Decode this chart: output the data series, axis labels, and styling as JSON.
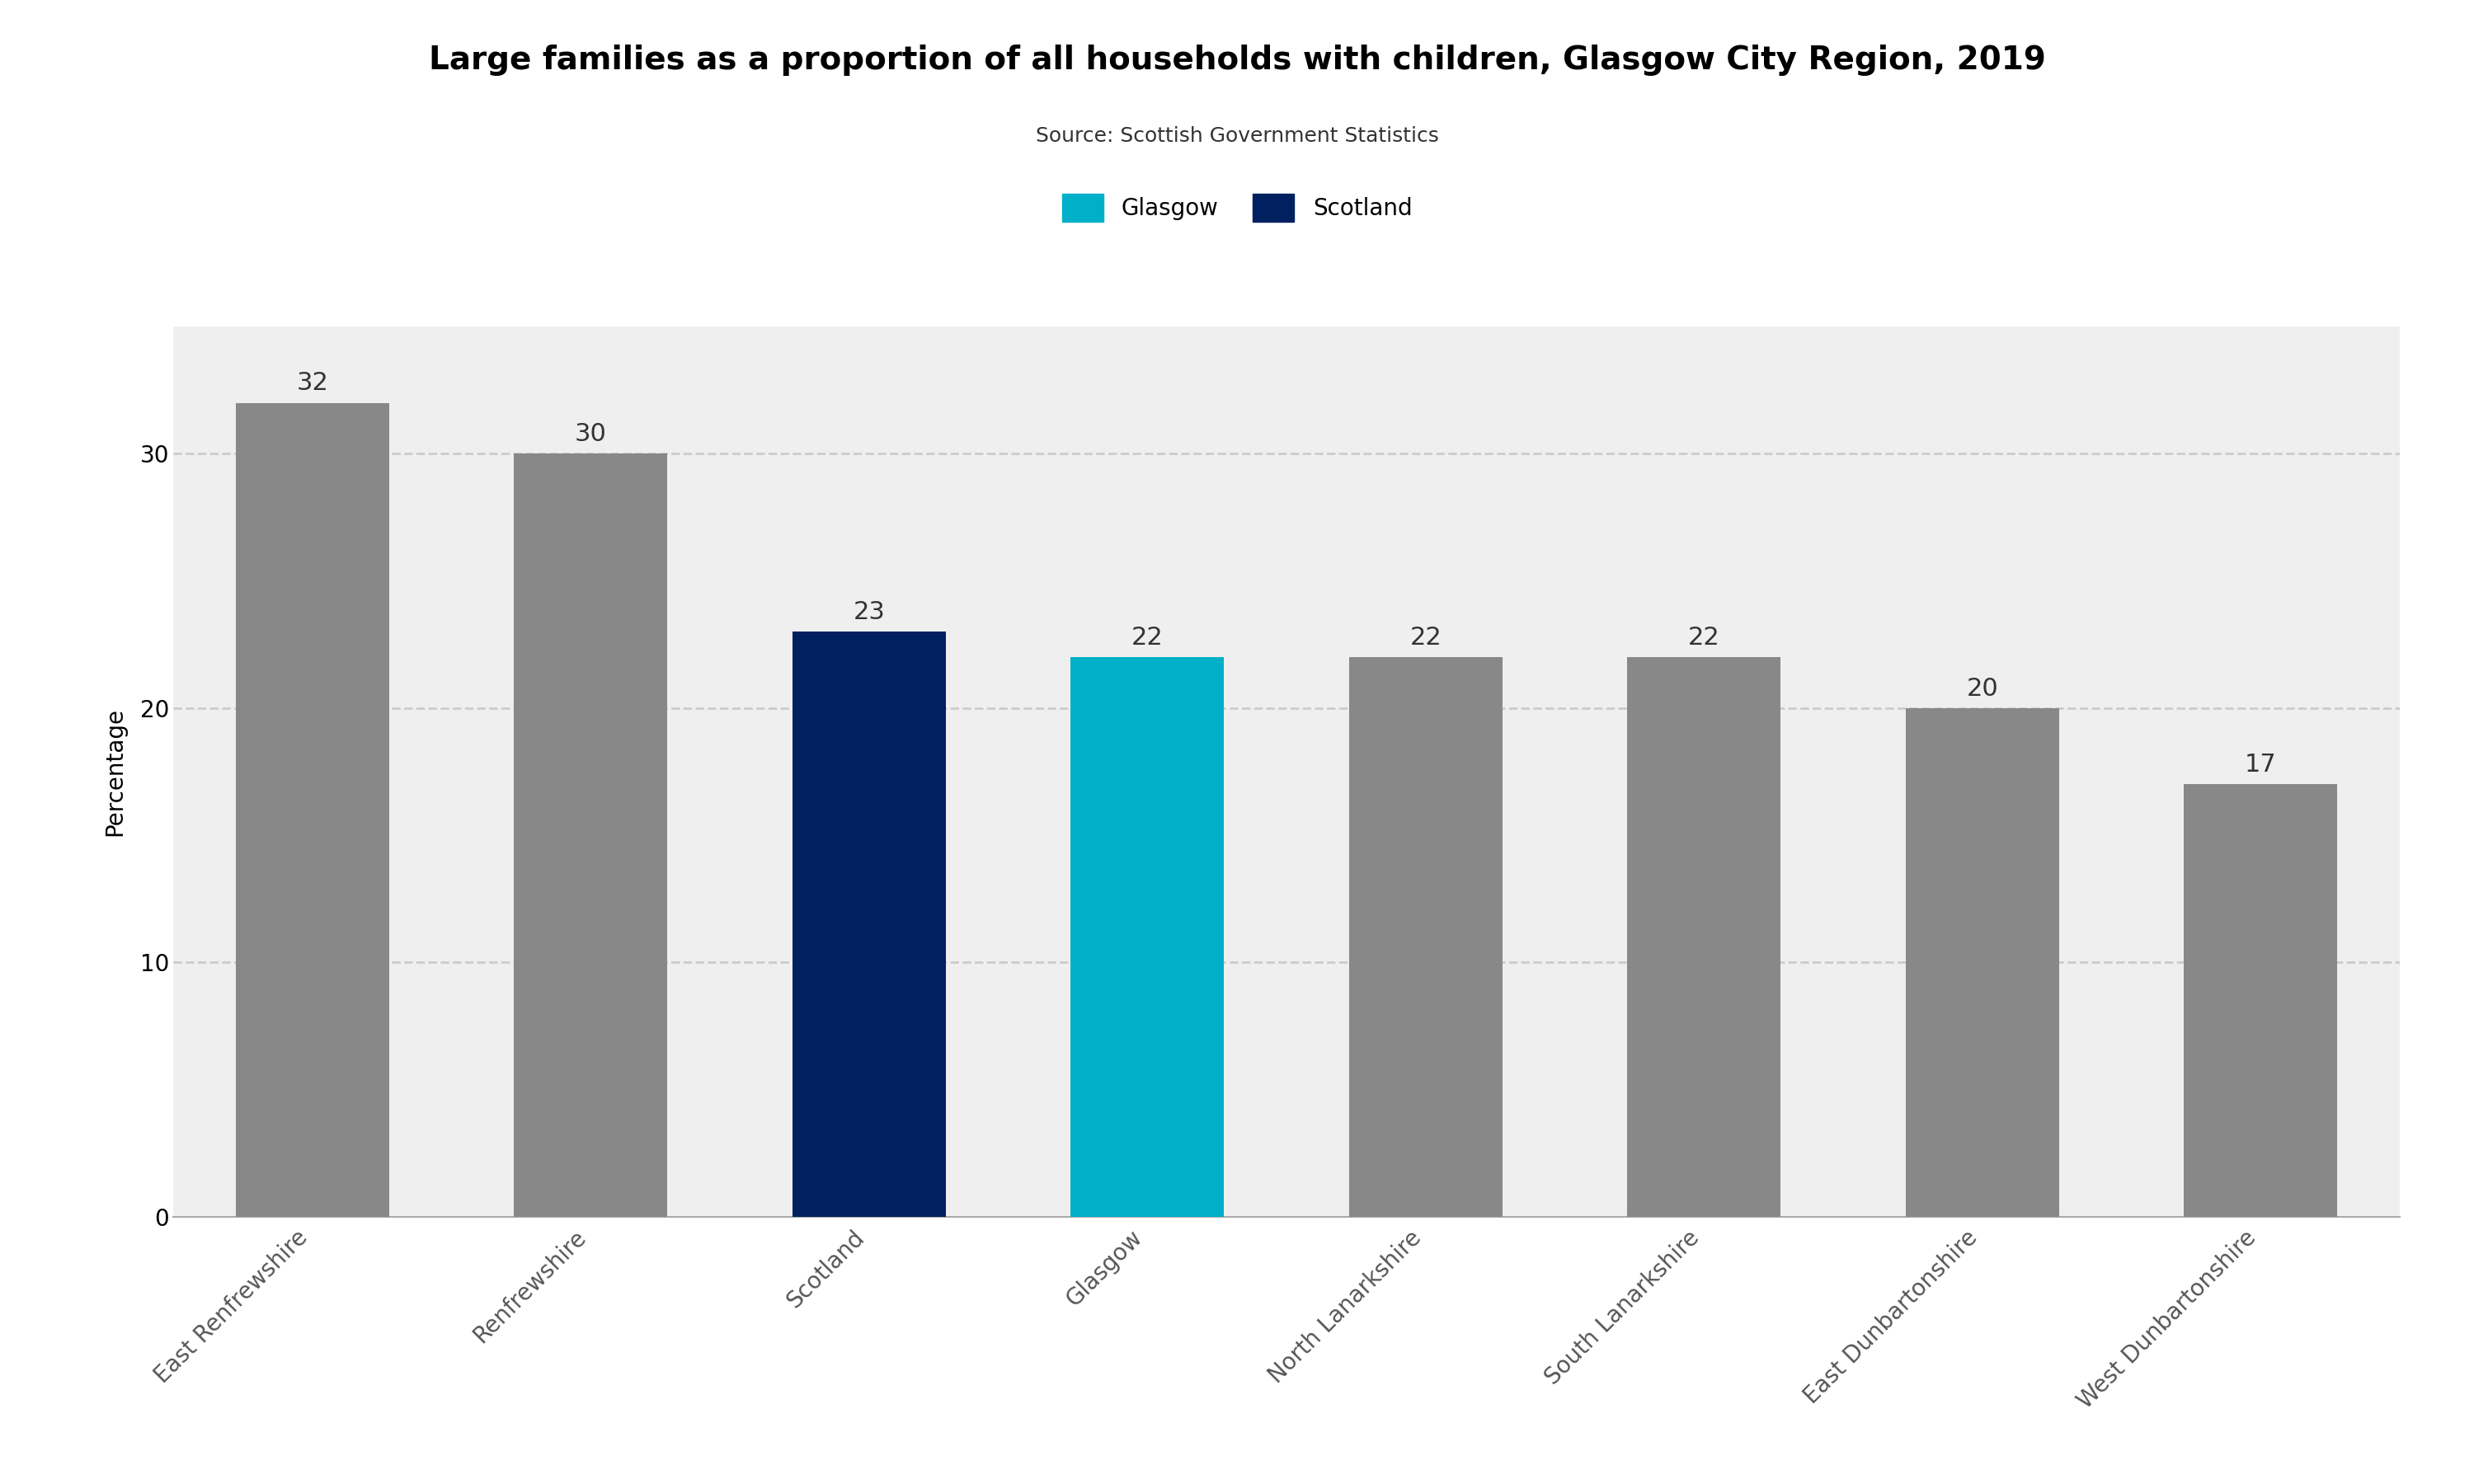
{
  "title": "Large families as a proportion of all households with children, Glasgow City Region, 2019",
  "source": "Source: Scottish Government Statistics",
  "ylabel": "Percentage",
  "categories": [
    "East Renfrewshire",
    "Renfrewshire",
    "Scotland",
    "Glasgow",
    "North Lanarkshire",
    "South Lanarkshire",
    "East Dunbartonshire",
    "West Dunbartonshire"
  ],
  "values": [
    32,
    30,
    23,
    22,
    22,
    22,
    20,
    17
  ],
  "bar_colors": [
    "#888888",
    "#888888",
    "#002060",
    "#00b0c8",
    "#888888",
    "#888888",
    "#888888",
    "#888888"
  ],
  "glasgow_color": "#00b0c8",
  "scotland_color": "#002060",
  "grey_color": "#888888",
  "ylim": [
    0,
    35
  ],
  "yticks": [
    0,
    10,
    20,
    30
  ],
  "background_color": "#efefef",
  "title_fontsize": 28,
  "source_fontsize": 18,
  "label_fontsize": 20,
  "tick_fontsize": 20,
  "bar_label_fontsize": 22,
  "legend_fontsize": 20
}
